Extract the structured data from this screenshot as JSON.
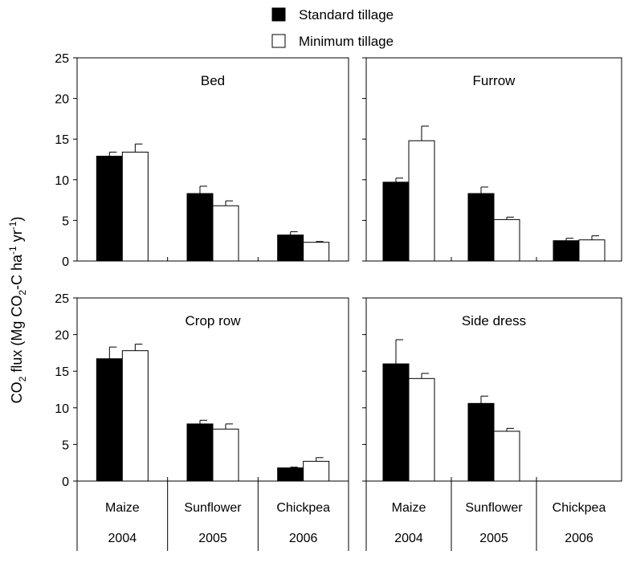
{
  "legend": {
    "standard": "Standard tillage",
    "minimum": "Minimum tillage"
  },
  "y_axis_label": {
    "prefix": "CO",
    "sub2": "2",
    "mid": " flux (Mg CO",
    "sub2b": "2",
    "mid2": "-C ha",
    "sup1": "-1",
    "mid3": " yr",
    "sup2": "-1",
    "suffix": ")"
  },
  "colors": {
    "standard": "#000000",
    "minimum": "#ffffff"
  },
  "chart_data": [
    {
      "type": "bar",
      "title": "Bed",
      "categories": [
        "Maize",
        "Sunflower",
        "Chickpea"
      ],
      "years": [
        "2004",
        "2005",
        "2006"
      ],
      "ylim": [
        0,
        25
      ],
      "yticks": [
        0,
        5,
        10,
        15,
        20,
        25
      ],
      "series": [
        {
          "name": "Standard tillage",
          "values": [
            12.9,
            8.3,
            3.2
          ],
          "errors": [
            0.5,
            0.9,
            0.4
          ]
        },
        {
          "name": "Minimum tillage",
          "values": [
            13.4,
            6.8,
            2.3
          ],
          "errors": [
            1.0,
            0.6,
            0.1
          ]
        }
      ]
    },
    {
      "type": "bar",
      "title": "Furrow",
      "categories": [
        "Maize",
        "Sunflower",
        "Chickpea"
      ],
      "years": [
        "2004",
        "2005",
        "2006"
      ],
      "ylim": [
        0,
        25
      ],
      "yticks": [
        0,
        5,
        10,
        15,
        20,
        25
      ],
      "series": [
        {
          "name": "Standard tillage",
          "values": [
            9.7,
            8.3,
            2.5
          ],
          "errors": [
            0.5,
            0.8,
            0.3
          ]
        },
        {
          "name": "Minimum tillage",
          "values": [
            14.8,
            5.1,
            2.6
          ],
          "errors": [
            1.8,
            0.3,
            0.5
          ]
        }
      ]
    },
    {
      "type": "bar",
      "title": "Crop row",
      "categories": [
        "Maize",
        "Sunflower",
        "Chickpea"
      ],
      "years": [
        "2004",
        "2005",
        "2006"
      ],
      "ylim": [
        0,
        25
      ],
      "yticks": [
        0,
        5,
        10,
        15,
        20,
        25
      ],
      "series": [
        {
          "name": "Standard tillage",
          "values": [
            16.7,
            7.8,
            1.8
          ],
          "errors": [
            1.6,
            0.5,
            0.1
          ]
        },
        {
          "name": "Minimum tillage",
          "values": [
            17.8,
            7.1,
            2.7
          ],
          "errors": [
            0.9,
            0.7,
            0.5
          ]
        }
      ]
    },
    {
      "type": "bar",
      "title": "Side dress",
      "categories": [
        "Maize",
        "Sunflower",
        "Chickpea"
      ],
      "years": [
        "2004",
        "2005",
        "2006"
      ],
      "ylim": [
        0,
        25
      ],
      "yticks": [
        0,
        5,
        10,
        15,
        20,
        25
      ],
      "series": [
        {
          "name": "Standard tillage",
          "values": [
            16.0,
            10.6,
            null
          ],
          "errors": [
            3.3,
            1.0,
            null
          ]
        },
        {
          "name": "Minimum tillage",
          "values": [
            14.0,
            6.8,
            null
          ],
          "errors": [
            0.7,
            0.4,
            null
          ]
        }
      ]
    }
  ]
}
